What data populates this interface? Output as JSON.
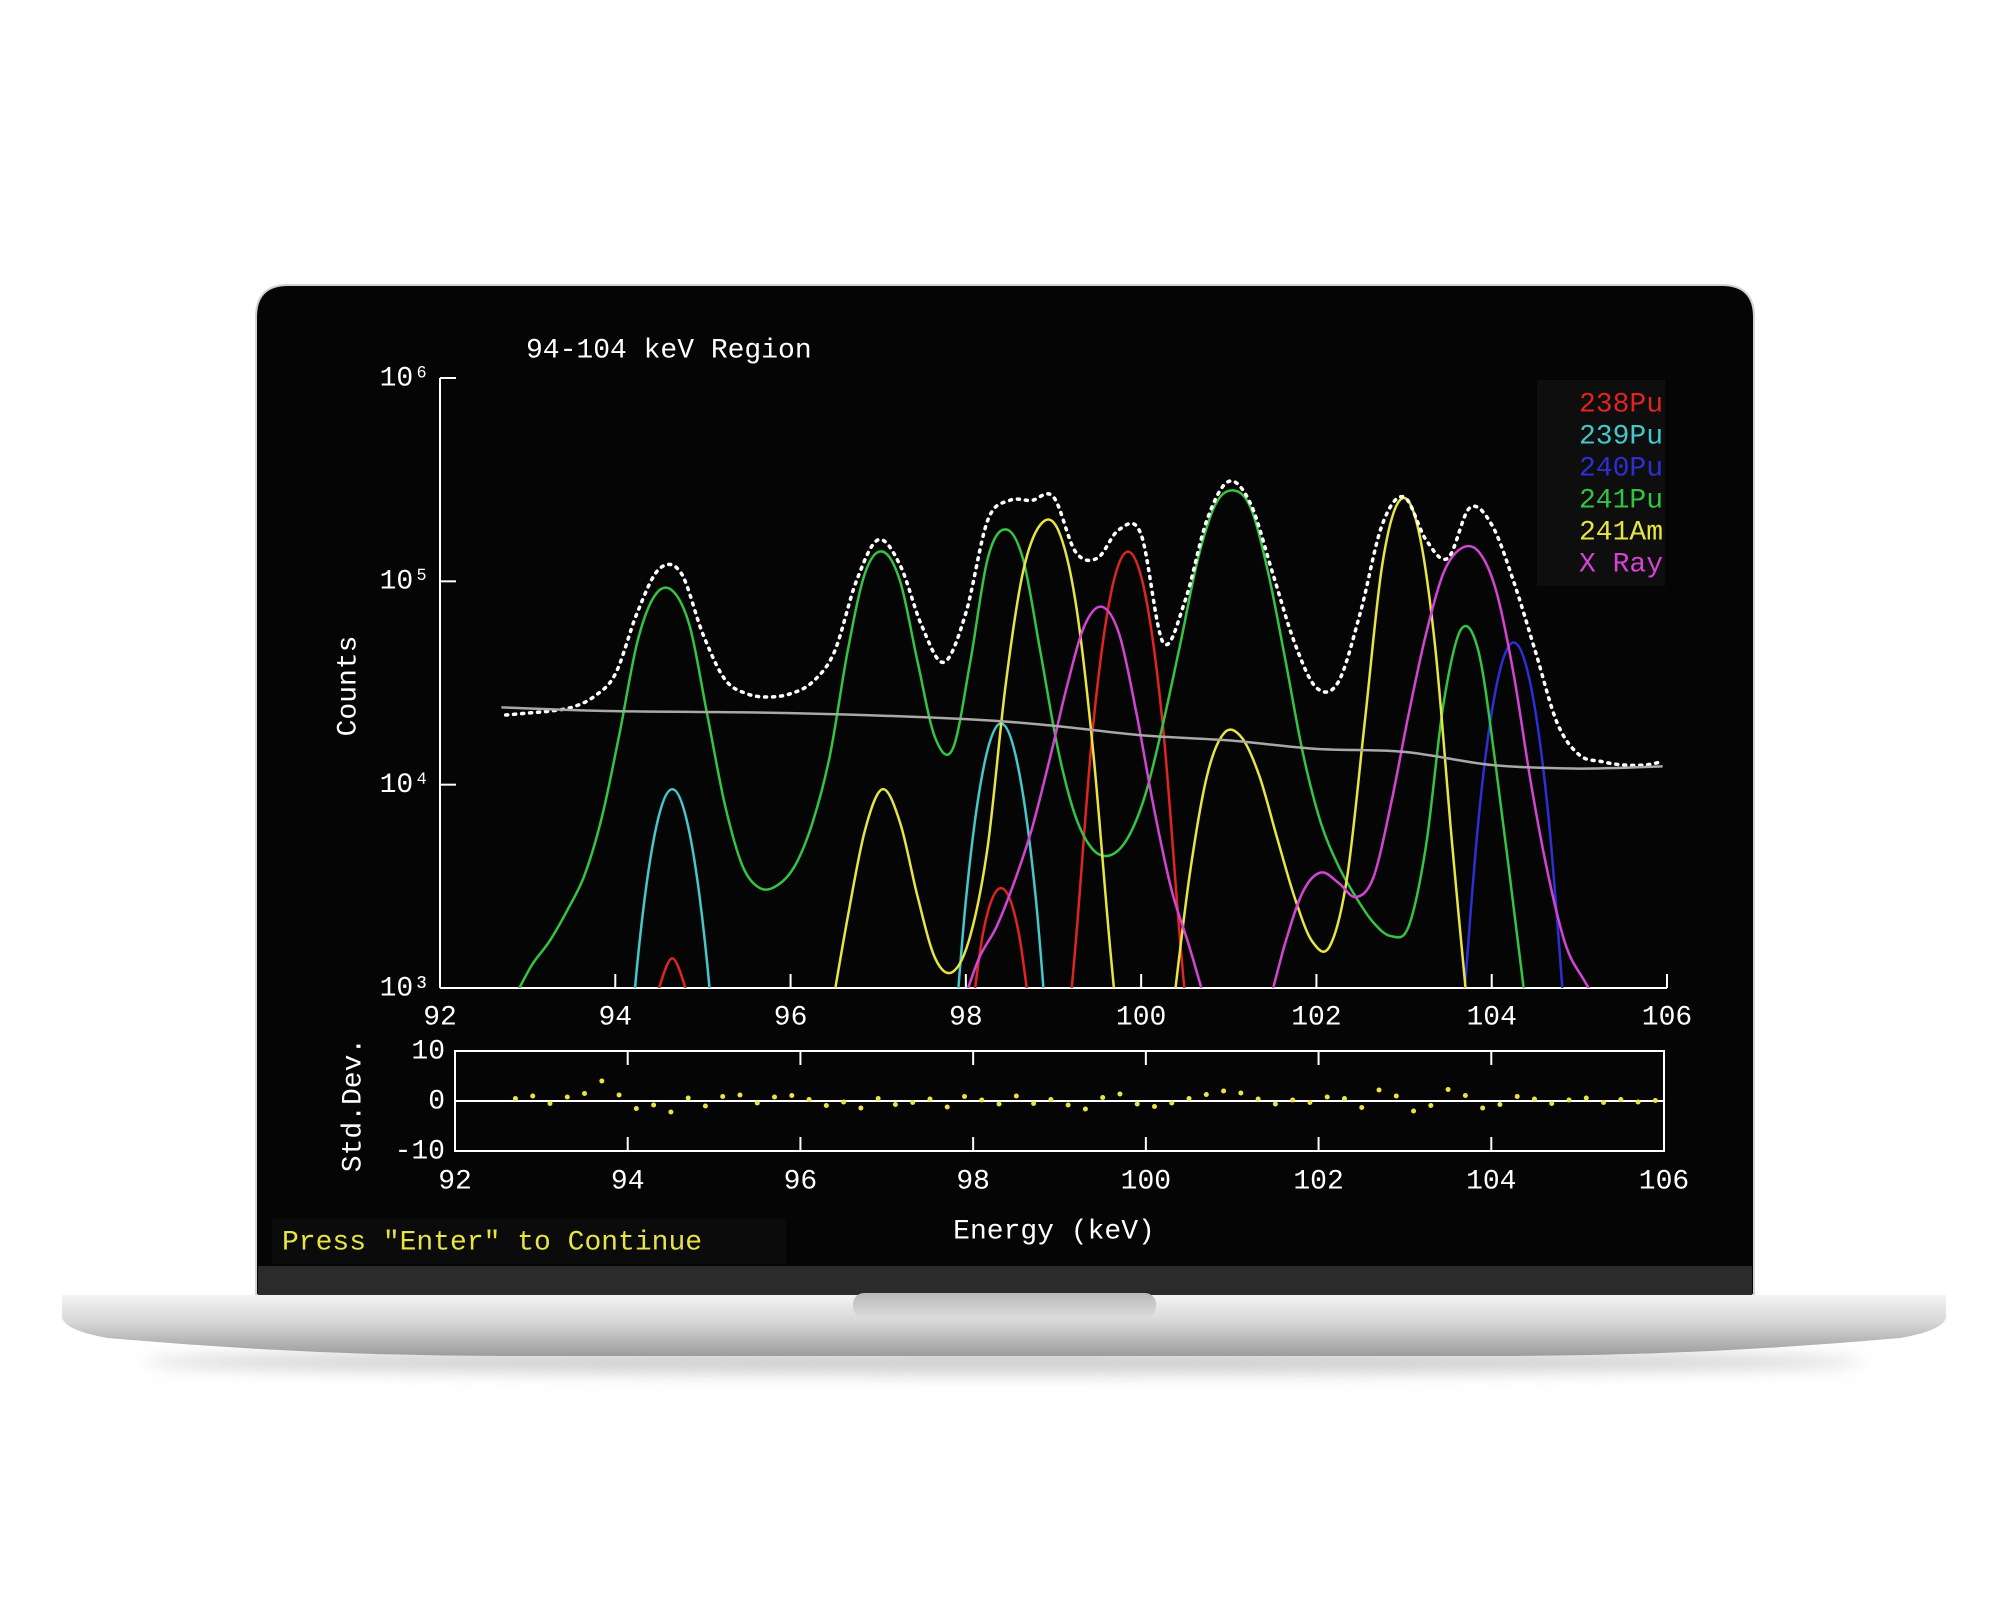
{
  "screen": {
    "prompt": "Press \"Enter\" to Continue"
  },
  "chart_data": [
    {
      "type": "line",
      "title": "94-104 keV Region",
      "ylabel": "Counts",
      "log_y": true,
      "legend": "upper right",
      "xlim": [
        92,
        106
      ],
      "xticks": [
        92,
        94,
        96,
        98,
        100,
        102,
        104,
        106
      ],
      "ylim": [
        1000,
        1000000
      ],
      "yticks": [
        {
          "value": 1000,
          "label": "10³"
        },
        {
          "value": 10000,
          "label": "10⁴"
        },
        {
          "value": 100000,
          "label": "10⁵"
        },
        {
          "value": 1000000,
          "label": "10⁶"
        }
      ],
      "series": [
        {
          "name": "238Pu",
          "color": "#e02424",
          "x": [
            94.45,
            94.65,
            94.85,
            null,
            98.0,
            98.2,
            98.4,
            98.6,
            98.8,
            null,
            99.05,
            99.25,
            99.45,
            99.65,
            99.85,
            100.05,
            100.25,
            100.45,
            100.65
          ],
          "values": [
            850,
            1400,
            850,
            null,
            420,
            1900,
            3100,
            1900,
            420,
            null,
            180,
            1600,
            19000,
            85000,
            140000,
            85000,
            19000,
            1600,
            180
          ]
        },
        {
          "name": "239Pu",
          "color": "#44c8cc",
          "x": [
            94.05,
            94.25,
            94.45,
            94.65,
            94.85,
            95.05,
            95.25,
            null,
            97.8,
            98.0,
            98.2,
            98.4,
            98.6,
            98.8,
            99.0
          ],
          "values": [
            110,
            1300,
            5700,
            9500,
            5700,
            1300,
            110,
            null,
            220,
            2700,
            12000,
            20000,
            12000,
            2700,
            220
          ]
        },
        {
          "name": "240Pu",
          "color": "#2c30d4",
          "x": [
            103.65,
            103.85,
            104.05,
            104.25,
            104.45,
            104.65,
            104.85
          ],
          "values": [
            560,
            6800,
            30000,
            50000,
            30000,
            6800,
            560
          ]
        },
        {
          "name": "241Pu",
          "color": "#34c444",
          "x": [
            92.85,
            93.05,
            93.25,
            93.45,
            93.65,
            93.85,
            94.05,
            94.25,
            94.45,
            94.65,
            94.85,
            95.05,
            95.25,
            95.45,
            95.65,
            95.85,
            96.05,
            96.25,
            96.45,
            96.65,
            96.85,
            97.05,
            97.25,
            97.45,
            97.65,
            97.85,
            98.05,
            98.25,
            98.45,
            98.65,
            98.85,
            99.05,
            99.25,
            99.45,
            99.65,
            99.85,
            100.05,
            100.25,
            100.45,
            100.65,
            100.85,
            101.05,
            101.25,
            101.45,
            101.65,
            101.85,
            102.05,
            102.25,
            102.45,
            102.65,
            102.85,
            103.05,
            103.25,
            103.45,
            103.65,
            103.85,
            104.05,
            104.25,
            104.45
          ],
          "values": [
            900,
            1300,
            1700,
            2400,
            3600,
            7000,
            18000,
            50000,
            85000,
            90000,
            60000,
            22000,
            8000,
            4000,
            3100,
            3200,
            4000,
            6500,
            14000,
            45000,
            110000,
            140000,
            100000,
            40000,
            17000,
            15000,
            40000,
            130000,
            180000,
            130000,
            45000,
            15000,
            7000,
            4800,
            4500,
            5500,
            9000,
            20000,
            50000,
            130000,
            240000,
            280000,
            230000,
            110000,
            40000,
            14000,
            6500,
            4000,
            2800,
            2100,
            1800,
            2000,
            5000,
            25000,
            58000,
            45000,
            12000,
            2500,
            500
          ]
        },
        {
          "name": "241Am",
          "color": "#e8e444",
          "x": [
            96.45,
            96.65,
            96.85,
            97.05,
            97.25,
            97.45,
            97.65,
            97.85,
            98.05,
            98.25,
            98.45,
            98.65,
            98.85,
            99.05,
            99.25,
            99.45,
            99.65,
            99.85,
            null,
            100.35,
            100.55,
            100.75,
            100.95,
            101.15,
            101.35,
            101.55,
            101.75,
            101.95,
            102.15,
            102.35,
            102.55,
            102.75,
            102.95,
            103.15,
            103.35,
            103.55,
            103.75
          ],
          "values": [
            700,
            2200,
            6000,
            9500,
            6500,
            2800,
            1400,
            1200,
            1800,
            5000,
            30000,
            110000,
            190000,
            180000,
            80000,
            15000,
            1500,
            200,
            null,
            700,
            3500,
            11000,
            18000,
            17000,
            11000,
            5500,
            2800,
            1700,
            1600,
            3500,
            20000,
            120000,
            250000,
            190000,
            50000,
            5000,
            600
          ]
        },
        {
          "name": "X Ray",
          "color": "#d444d4",
          "x": [
            97.95,
            98.15,
            98.35,
            98.55,
            98.75,
            98.95,
            99.15,
            99.35,
            99.55,
            99.75,
            99.95,
            100.15,
            100.35,
            100.55,
            100.75,
            null,
            101.45,
            101.65,
            101.85,
            102.05,
            102.25,
            102.45,
            102.65,
            102.85,
            103.05,
            103.25,
            103.45,
            103.65,
            103.85,
            104.05,
            104.25,
            104.45,
            104.65,
            104.85,
            105.05,
            105.25
          ],
          "values": [
            800,
            1400,
            2000,
            3300,
            6000,
            13000,
            30000,
            60000,
            75000,
            55000,
            22000,
            7500,
            3000,
            1600,
            800,
            null,
            800,
            1700,
            3000,
            3700,
            3300,
            2800,
            3500,
            8000,
            22000,
            55000,
            110000,
            145000,
            140000,
            90000,
            35000,
            10000,
            3500,
            1600,
            1100,
            800
          ]
        },
        {
          "color": "#ffffff",
          "style": "dotted",
          "x": [
            92.75,
            93,
            93.25,
            93.5,
            93.75,
            94,
            94.25,
            94.5,
            94.75,
            95,
            95.25,
            95.5,
            95.75,
            96,
            96.25,
            96.5,
            96.75,
            97,
            97.25,
            97.5,
            97.75,
            98,
            98.25,
            98.5,
            98.75,
            99,
            99.25,
            99.5,
            99.75,
            100,
            100.25,
            100.5,
            100.75,
            101,
            101.25,
            101.5,
            101.75,
            102,
            102.25,
            102.5,
            102.75,
            103,
            103.25,
            103.5,
            103.75,
            104,
            104.25,
            104.5,
            104.75,
            105,
            105.25,
            105.5,
            105.75,
            105.95
          ],
          "values": [
            22000,
            22500,
            23000,
            24000,
            27000,
            35000,
            70000,
            115000,
            110000,
            55000,
            33000,
            28000,
            27000,
            28000,
            32000,
            45000,
            100000,
            160000,
            120000,
            60000,
            40000,
            70000,
            200000,
            250000,
            250000,
            260000,
            140000,
            130000,
            180000,
            170000,
            50000,
            80000,
            200000,
            310000,
            240000,
            110000,
            50000,
            30000,
            32000,
            70000,
            190000,
            260000,
            160000,
            130000,
            230000,
            190000,
            100000,
            45000,
            20000,
            14000,
            13000,
            12500,
            12500,
            13000
          ]
        },
        {
          "color": "#a8a8a8",
          "x": [
            92.7,
            94,
            96,
            98,
            99,
            100,
            101,
            102,
            103,
            104,
            105,
            105.95
          ],
          "values": [
            24000,
            23000,
            22500,
            21000,
            19500,
            17500,
            16500,
            15000,
            14500,
            12500,
            12000,
            12300
          ]
        }
      ]
    },
    {
      "type": "scatter",
      "ylabel": "Std.Dev.",
      "xlabel": "Energy (keV)",
      "grid": true,
      "color": "#e8e444",
      "xlim": [
        92,
        106
      ],
      "xticks": [
        92,
        94,
        96,
        98,
        100,
        102,
        104,
        106
      ],
      "ylim": [
        -10,
        10
      ],
      "yticks": [
        -10,
        0,
        10
      ],
      "x": [
        92.7,
        92.9,
        93.1,
        93.3,
        93.5,
        93.7,
        93.9,
        94.1,
        94.3,
        94.5,
        94.7,
        94.9,
        95.1,
        95.3,
        95.5,
        95.7,
        95.9,
        96.1,
        96.3,
        96.5,
        96.7,
        96.9,
        97.1,
        97.3,
        97.5,
        97.7,
        97.9,
        98.1,
        98.3,
        98.5,
        98.7,
        98.9,
        99.1,
        99.3,
        99.5,
        99.7,
        99.9,
        100.1,
        100.3,
        100.5,
        100.7,
        100.9,
        101.1,
        101.3,
        101.5,
        101.7,
        101.9,
        102.1,
        102.3,
        102.5,
        102.7,
        102.9,
        103.1,
        103.3,
        103.5,
        103.7,
        103.9,
        104.1,
        104.3,
        104.5,
        104.7,
        104.9,
        105.1,
        105.3,
        105.5,
        105.7,
        105.9
      ],
      "values": [
        0.5,
        1.0,
        -0.5,
        0.8,
        1.5,
        4.0,
        1.2,
        -1.5,
        -0.8,
        -2.2,
        0.6,
        -1.0,
        0.9,
        1.2,
        -0.4,
        0.8,
        1.1,
        0.3,
        -0.9,
        -0.2,
        -1.4,
        0.5,
        -0.7,
        -0.3,
        0.4,
        -1.2,
        0.9,
        0.2,
        -0.6,
        1.0,
        -0.5,
        0.3,
        -0.8,
        -1.6,
        0.7,
        1.4,
        -0.6,
        -1.1,
        -0.4,
        0.5,
        1.3,
        2.0,
        1.6,
        0.4,
        -0.6,
        0.2,
        -0.3,
        0.8,
        0.5,
        -1.3,
        2.2,
        1.0,
        -2.0,
        -0.9,
        2.3,
        1.1,
        -1.4,
        -0.7,
        0.9,
        0.4,
        -0.5,
        0.2,
        0.6,
        -0.3,
        0.3,
        -0.2,
        0.1
      ]
    }
  ]
}
